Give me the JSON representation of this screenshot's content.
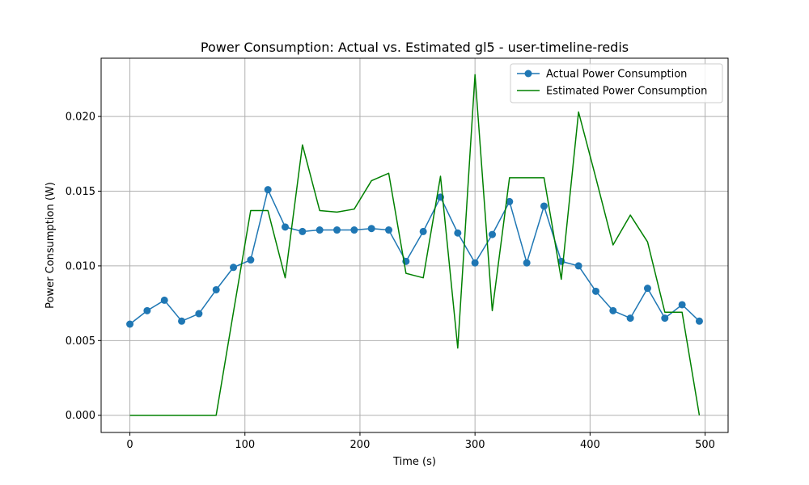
{
  "chart_data": {
    "type": "line",
    "title": "Power Consumption: Actual vs. Estimated gl5 - user-timeline-redis",
    "xlabel": "Time (s)",
    "ylabel": "Power Consumption (W)",
    "xlim": [
      -25,
      520
    ],
    "ylim": [
      -0.00115,
      0.0239
    ],
    "xticks": [
      0,
      100,
      200,
      300,
      400,
      500
    ],
    "xtick_labels": [
      "0",
      "100",
      "200",
      "300",
      "400",
      "500"
    ],
    "yticks": [
      0,
      0.005,
      0.01,
      0.015,
      0.02
    ],
    "ytick_labels": [
      "0.000",
      "0.005",
      "0.010",
      "0.015",
      "0.020"
    ],
    "grid": true,
    "legend_position": "top-right",
    "x": [
      0,
      15,
      30,
      45,
      60,
      75,
      90,
      105,
      120,
      135,
      150,
      165,
      180,
      195,
      210,
      225,
      240,
      255,
      270,
      285,
      300,
      315,
      330,
      345,
      360,
      375,
      390,
      405,
      420,
      435,
      450,
      465,
      480,
      495
    ],
    "series": [
      {
        "name": "Actual Power Consumption",
        "color": "#1f77b4",
        "marker": "circle",
        "values": [
          0.0061,
          0.007,
          0.0077,
          0.0063,
          0.0068,
          0.0084,
          0.0099,
          0.0104,
          0.0151,
          0.0126,
          0.0123,
          0.0124,
          0.0124,
          0.0124,
          0.0125,
          0.0124,
          0.0103,
          0.0123,
          0.0146,
          0.0122,
          0.0102,
          0.0121,
          0.0143,
          0.0102,
          0.014,
          0.0103,
          0.01,
          0.0083,
          0.007,
          0.0065,
          0.0085,
          0.0065,
          0.0074,
          0.0063
        ]
      },
      {
        "name": "Estimated Power Consumption",
        "color": "#008000",
        "marker": "none",
        "values": [
          0.0,
          0.0,
          0.0,
          0.0,
          0.0,
          0.0,
          0.0069,
          0.0137,
          0.0137,
          0.0092,
          0.0181,
          0.0137,
          0.0136,
          0.0138,
          0.0157,
          0.0162,
          0.0095,
          0.0092,
          0.016,
          0.0045,
          0.0228,
          0.007,
          0.0159,
          0.0159,
          0.0159,
          0.0091,
          0.0203,
          0.0159,
          0.0114,
          0.0134,
          0.0116,
          0.0069,
          0.0069,
          0.0
        ]
      }
    ]
  }
}
